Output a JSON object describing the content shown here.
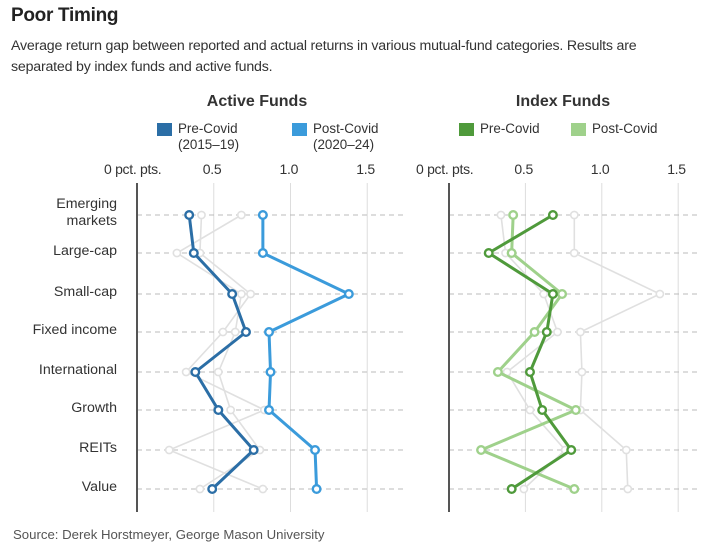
{
  "title": "Poor Timing",
  "subtitle": "Average return gap between reported and actual returns in various mutual-fund categories. Results are separated by index funds and active funds.",
  "source": "Source: Derek Horstmeyer, George Mason University",
  "chart_data": [
    {
      "type": "line",
      "orientation": "horizontal-dot-plot",
      "title": "Active Funds",
      "xlabel": "pct. pts.",
      "xlim": [
        0,
        1.5
      ],
      "xticks": [
        {
          "value": 0,
          "label": "0 pct. pts."
        },
        {
          "value": 0.5,
          "label": "0.5"
        },
        {
          "value": 1.0,
          "label": "1.0"
        },
        {
          "value": 1.5,
          "label": "1.5"
        }
      ],
      "grid": true,
      "categories": [
        "Emerging markets",
        "Large-cap",
        "Small-cap",
        "Fixed income",
        "International",
        "Growth",
        "REITs",
        "Value"
      ],
      "series": [
        {
          "name": "Pre-Covid",
          "legend_line2": "(2015–19)",
          "color": "#2b6ea6",
          "values": [
            0.34,
            0.37,
            0.62,
            0.71,
            0.38,
            0.53,
            0.76,
            0.49
          ]
        },
        {
          "name": "Post-Covid",
          "legend_line2": "(2020–24)",
          "color": "#3b9bdb",
          "values": [
            0.82,
            0.82,
            1.38,
            0.86,
            0.87,
            0.86,
            1.16,
            1.17
          ]
        }
      ],
      "background_series_from": "Index Funds"
    },
    {
      "type": "line",
      "orientation": "horizontal-dot-plot",
      "title": "Index Funds",
      "xlabel": "pct. pts.",
      "xlim": [
        0,
        1.5
      ],
      "xticks": [
        {
          "value": 0,
          "label": "0 pct. pts."
        },
        {
          "value": 0.5,
          "label": "0.5"
        },
        {
          "value": 1.0,
          "label": "1.0"
        },
        {
          "value": 1.5,
          "label": "1.5"
        }
      ],
      "grid": true,
      "categories": [
        "Emerging markets",
        "Large-cap",
        "Small-cap",
        "Fixed income",
        "International",
        "Growth",
        "REITs",
        "Value"
      ],
      "series": [
        {
          "name": "Pre-Covid",
          "legend_line2": "",
          "color": "#4f9a3b",
          "values": [
            0.68,
            0.26,
            0.68,
            0.64,
            0.53,
            0.61,
            0.8,
            0.41
          ]
        },
        {
          "name": "Post-Covid",
          "legend_line2": "",
          "color": "#9fd18b",
          "values": [
            0.42,
            0.41,
            0.74,
            0.56,
            0.32,
            0.83,
            0.21,
            0.82
          ]
        }
      ],
      "background_series_from": "Active Funds"
    }
  ],
  "row_labels": [
    "Emerging\nmarkets",
    "Large-cap",
    "Small-cap",
    "Fixed income",
    "International",
    "Growth",
    "REITs",
    "Value"
  ],
  "colors": {
    "ghost": "#e0e0e0",
    "grid": "#dddddd",
    "dash": "#bbbbbb",
    "axis": "#555555"
  }
}
